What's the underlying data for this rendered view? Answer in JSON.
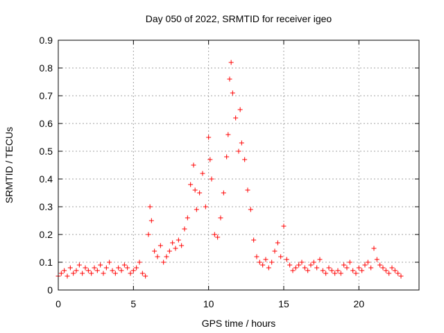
{
  "chart_data": {
    "type": "scatter",
    "title": "Day 050 of 2022, SRMTID for receiver igeo",
    "xlabel": "GPS time / hours",
    "ylabel": "SRMTID / TECUs",
    "xlim": [
      0,
      24
    ],
    "ylim": [
      0,
      0.9
    ],
    "grid": true,
    "marker": "+",
    "series_color": "#ff0000",
    "xticks": [
      0,
      5,
      10,
      15,
      20
    ],
    "xtick_labels": [
      "0",
      "5",
      "10",
      "15",
      "20"
    ],
    "yticks": [
      0,
      0.1,
      0.2,
      0.3,
      0.4,
      0.5,
      0.6,
      0.7,
      0.8,
      0.9
    ],
    "ytick_labels": [
      "0",
      "0.1",
      "0.2",
      "0.3",
      "0.4",
      "0.5",
      "0.6",
      "0.7",
      "0.8",
      "0.9"
    ],
    "series": [
      {
        "name": "SRMTID",
        "x": [
          0.0,
          0.2,
          0.4,
          0.6,
          0.8,
          1.0,
          1.2,
          1.4,
          1.6,
          1.8,
          2.0,
          2.2,
          2.4,
          2.6,
          2.8,
          3.0,
          3.2,
          3.4,
          3.6,
          3.8,
          4.0,
          4.2,
          4.4,
          4.6,
          4.8,
          5.0,
          5.2,
          5.4,
          5.6,
          5.8,
          6.0,
          6.1,
          6.2,
          6.4,
          6.6,
          6.8,
          7.0,
          7.2,
          7.4,
          7.6,
          7.8,
          8.0,
          8.2,
          8.4,
          8.6,
          8.8,
          9.0,
          9.1,
          9.2,
          9.4,
          9.6,
          9.8,
          10.0,
          10.1,
          10.2,
          10.4,
          10.6,
          10.8,
          11.0,
          11.2,
          11.3,
          11.4,
          11.5,
          11.6,
          11.8,
          12.0,
          12.1,
          12.2,
          12.4,
          12.6,
          12.8,
          13.0,
          13.2,
          13.4,
          13.6,
          13.8,
          14.0,
          14.2,
          14.4,
          14.6,
          14.8,
          15.0,
          15.2,
          15.4,
          15.6,
          15.8,
          16.0,
          16.2,
          16.4,
          16.6,
          16.8,
          17.0,
          17.2,
          17.4,
          17.6,
          17.8,
          18.0,
          18.2,
          18.4,
          18.6,
          18.8,
          19.0,
          19.2,
          19.4,
          19.6,
          19.8,
          20.0,
          20.2,
          20.4,
          20.6,
          20.8,
          21.0,
          21.2,
          21.4,
          21.6,
          21.8,
          22.0,
          22.2,
          22.4,
          22.6,
          22.8
        ],
        "y": [
          0.05,
          0.06,
          0.07,
          0.05,
          0.08,
          0.06,
          0.07,
          0.09,
          0.06,
          0.08,
          0.07,
          0.06,
          0.08,
          0.07,
          0.09,
          0.06,
          0.08,
          0.1,
          0.07,
          0.06,
          0.08,
          0.07,
          0.09,
          0.08,
          0.06,
          0.07,
          0.08,
          0.1,
          0.06,
          0.05,
          0.2,
          0.3,
          0.25,
          0.14,
          0.12,
          0.16,
          0.1,
          0.12,
          0.14,
          0.17,
          0.15,
          0.18,
          0.16,
          0.22,
          0.26,
          0.38,
          0.45,
          0.36,
          0.29,
          0.35,
          0.42,
          0.3,
          0.55,
          0.47,
          0.4,
          0.2,
          0.19,
          0.26,
          0.35,
          0.48,
          0.56,
          0.76,
          0.82,
          0.71,
          0.62,
          0.5,
          0.65,
          0.53,
          0.47,
          0.36,
          0.29,
          0.18,
          0.12,
          0.1,
          0.09,
          0.11,
          0.08,
          0.1,
          0.14,
          0.17,
          0.12,
          0.23,
          0.11,
          0.09,
          0.07,
          0.08,
          0.09,
          0.1,
          0.08,
          0.07,
          0.09,
          0.1,
          0.08,
          0.11,
          0.07,
          0.06,
          0.08,
          0.07,
          0.06,
          0.07,
          0.06,
          0.09,
          0.08,
          0.1,
          0.07,
          0.06,
          0.08,
          0.07,
          0.09,
          0.1,
          0.08,
          0.15,
          0.11,
          0.09,
          0.08,
          0.07,
          0.06,
          0.08,
          0.07,
          0.06,
          0.05
        ]
      }
    ]
  }
}
